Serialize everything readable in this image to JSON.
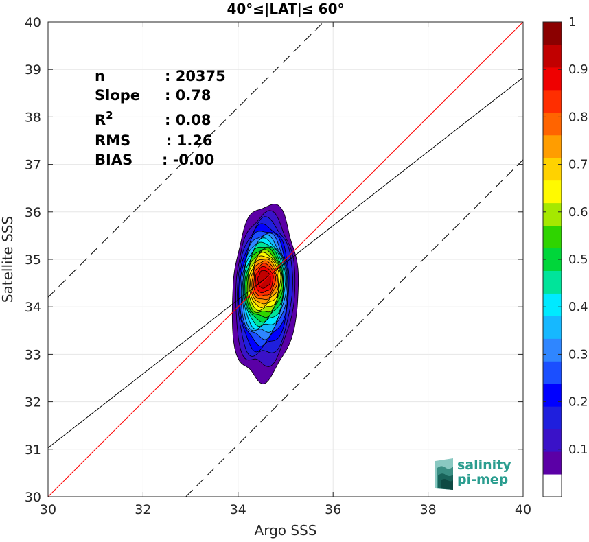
{
  "chart_data": {
    "type": "contour",
    "title": "40°≤|LAT|≤ 60°",
    "xlabel": "Argo SSS",
    "ylabel": "Satellite SSS",
    "xlim": [
      30,
      40
    ],
    "ylim": [
      30,
      40
    ],
    "xticks": [
      "30",
      "32",
      "34",
      "36",
      "38",
      "40"
    ],
    "yticks": [
      "30",
      "31",
      "32",
      "33",
      "34",
      "35",
      "36",
      "37",
      "38",
      "39",
      "40"
    ],
    "grid": true,
    "stats": [
      {
        "label": "n",
        "sep": ": ",
        "value": "20375"
      },
      {
        "label": "Slope",
        "sep": ": ",
        "value": "0.78"
      },
      {
        "label": "R",
        "sup": "2",
        "sep": ": ",
        "value": "0.08"
      },
      {
        "label": "RMS",
        "sep": ": ",
        "value": "1.26"
      },
      {
        "label": "BIAS",
        "sep": ": ",
        "value": "-0.00"
      }
    ],
    "lines": {
      "one_to_one": {
        "slope": 1,
        "intercept": 0,
        "color": "#ff0000"
      },
      "regression": {
        "slope": 0.78,
        "intercept": 7.63,
        "color": "#000000"
      },
      "upper_bound": {
        "slope": 1,
        "intercept": 4.2,
        "style": "dashed"
      },
      "lower_bound": {
        "slope": 1,
        "intercept": -2.9,
        "style": "dashed"
      }
    },
    "density_peak": {
      "x": 34.55,
      "y": 34.6
    },
    "contour_levels": [
      0.05,
      0.1,
      0.15,
      0.2,
      0.25,
      0.3,
      0.35,
      0.4,
      0.45,
      0.5,
      0.55,
      0.6,
      0.65,
      0.7,
      0.75,
      0.8,
      0.85,
      0.9,
      0.95
    ],
    "colorbar": {
      "min": 0,
      "max": 1,
      "ticks": [
        "0.1",
        "0.2",
        "0.3",
        "0.4",
        "0.5",
        "0.6",
        "0.7",
        "0.8",
        "0.9",
        "1"
      ],
      "colors": [
        "#ffffff",
        "#5b00a6",
        "#3a12c8",
        "#1f1fdd",
        "#0000ff",
        "#1b4fff",
        "#2f86ff",
        "#16b8ff",
        "#00eaff",
        "#00e49a",
        "#00d63a",
        "#2fd400",
        "#a5e800",
        "#fffa00",
        "#ffd200",
        "#ff9d00",
        "#ff6400",
        "#ff2e00",
        "#ef0000",
        "#c10000",
        "#8b0000"
      ]
    }
  },
  "logo": {
    "line1": "salinity",
    "line2": "pi-mep",
    "color": "#2a9d8f"
  }
}
